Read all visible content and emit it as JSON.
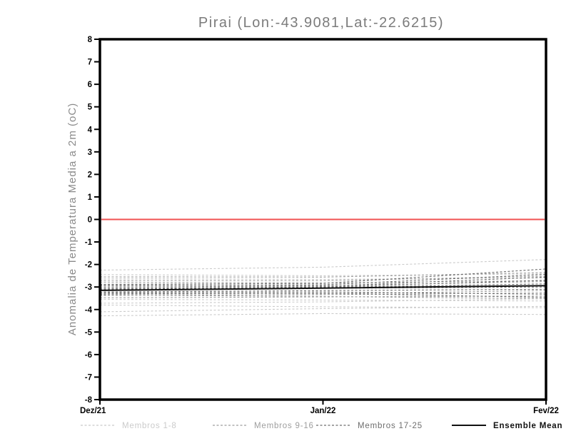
{
  "chart_data": {
    "type": "line",
    "title": "Pirai (Lon:-43.9081,Lat:-22.6215)",
    "xlabel": "",
    "ylabel": "Anomalia de Temperatura Media a 2m (oC)",
    "x_tick_labels": [
      "Dez/21",
      "Jan/22",
      "Fev/22"
    ],
    "ylim": [
      -8,
      8
    ],
    "y_tick_step": 1,
    "grid": "off",
    "zero_line": {
      "y": 0,
      "color": "#f05252"
    },
    "colors": {
      "members_1_8": "#cbcbcb",
      "members_9_16": "#9e9e9e",
      "members_17_25": "#6e6e6e",
      "ensemble_mean": "#111111",
      "frame": "#000000"
    },
    "legend": [
      {
        "label": "Membros 1-8",
        "group": "1-8",
        "style": "dashed"
      },
      {
        "label": "Membros 9-16",
        "group": "9-16",
        "style": "dashed"
      },
      {
        "label": "Membros 17-25",
        "group": "17-25",
        "style": "dashed"
      },
      {
        "label": "Ensemble Mean",
        "group": "mean",
        "style": "solid"
      }
    ],
    "legend_position": "bottom",
    "x": [
      "Dez/21",
      "Jan/22",
      "Fev/22"
    ],
    "series": [
      {
        "name": "member-1",
        "group": "1-8",
        "values": [
          -2.25,
          -2.12,
          -1.78
        ]
      },
      {
        "name": "member-2",
        "group": "1-8",
        "values": [
          -2.45,
          -2.5,
          -2.42
        ]
      },
      {
        "name": "member-3",
        "group": "1-8",
        "values": [
          -2.62,
          -2.66,
          -2.6
        ]
      },
      {
        "name": "member-4",
        "group": "1-8",
        "values": [
          -3.55,
          -3.58,
          -3.62
        ]
      },
      {
        "name": "member-5",
        "group": "1-8",
        "values": [
          -3.72,
          -3.66,
          -3.52
        ]
      },
      {
        "name": "member-6",
        "group": "1-8",
        "values": [
          -3.8,
          -3.88,
          -3.92
        ]
      },
      {
        "name": "member-7",
        "group": "1-8",
        "values": [
          -4.1,
          -3.96,
          -3.86
        ]
      },
      {
        "name": "member-8",
        "group": "1-8",
        "values": [
          -4.28,
          -4.18,
          -4.22
        ]
      },
      {
        "name": "member-9",
        "group": "9-16",
        "values": [
          -2.55,
          -2.56,
          -2.36
        ]
      },
      {
        "name": "member-10",
        "group": "9-16",
        "values": [
          -2.7,
          -2.72,
          -2.52
        ]
      },
      {
        "name": "member-11",
        "group": "9-16",
        "values": [
          -2.78,
          -2.82,
          -2.72
        ]
      },
      {
        "name": "member-12",
        "group": "9-16",
        "values": [
          -3.28,
          -3.3,
          -3.16
        ]
      },
      {
        "name": "member-13",
        "group": "9-16",
        "values": [
          -3.38,
          -3.34,
          -3.26
        ]
      },
      {
        "name": "member-14",
        "group": "9-16",
        "values": [
          -3.48,
          -3.44,
          -3.4
        ]
      },
      {
        "name": "member-15",
        "group": "9-16",
        "values": [
          -3.36,
          -3.42,
          -3.52
        ]
      },
      {
        "name": "member-16",
        "group": "9-16",
        "values": [
          -2.9,
          -2.94,
          -2.76
        ]
      },
      {
        "name": "member-17",
        "group": "17-25",
        "values": [
          -2.88,
          -2.84,
          -2.2
        ]
      },
      {
        "name": "member-18",
        "group": "17-25",
        "values": [
          -2.94,
          -2.9,
          -2.44
        ]
      },
      {
        "name": "member-19",
        "group": "17-25",
        "values": [
          -3.0,
          -2.96,
          -2.56
        ]
      },
      {
        "name": "member-20",
        "group": "17-25",
        "values": [
          -3.06,
          -3.0,
          -2.7
        ]
      },
      {
        "name": "member-21",
        "group": "17-25",
        "values": [
          -3.1,
          -3.02,
          -2.86
        ]
      },
      {
        "name": "member-22",
        "group": "17-25",
        "values": [
          -3.16,
          -3.06,
          -3.0
        ]
      },
      {
        "name": "member-23",
        "group": "17-25",
        "values": [
          -3.22,
          -3.16,
          -3.1
        ]
      },
      {
        "name": "member-24",
        "group": "17-25",
        "values": [
          -3.26,
          -3.22,
          -3.32
        ]
      },
      {
        "name": "member-25",
        "group": "17-25",
        "values": [
          -3.32,
          -3.28,
          -3.46
        ]
      },
      {
        "name": "Ensemble Mean",
        "group": "mean",
        "values": [
          -3.15,
          -3.05,
          -2.94
        ]
      }
    ]
  }
}
